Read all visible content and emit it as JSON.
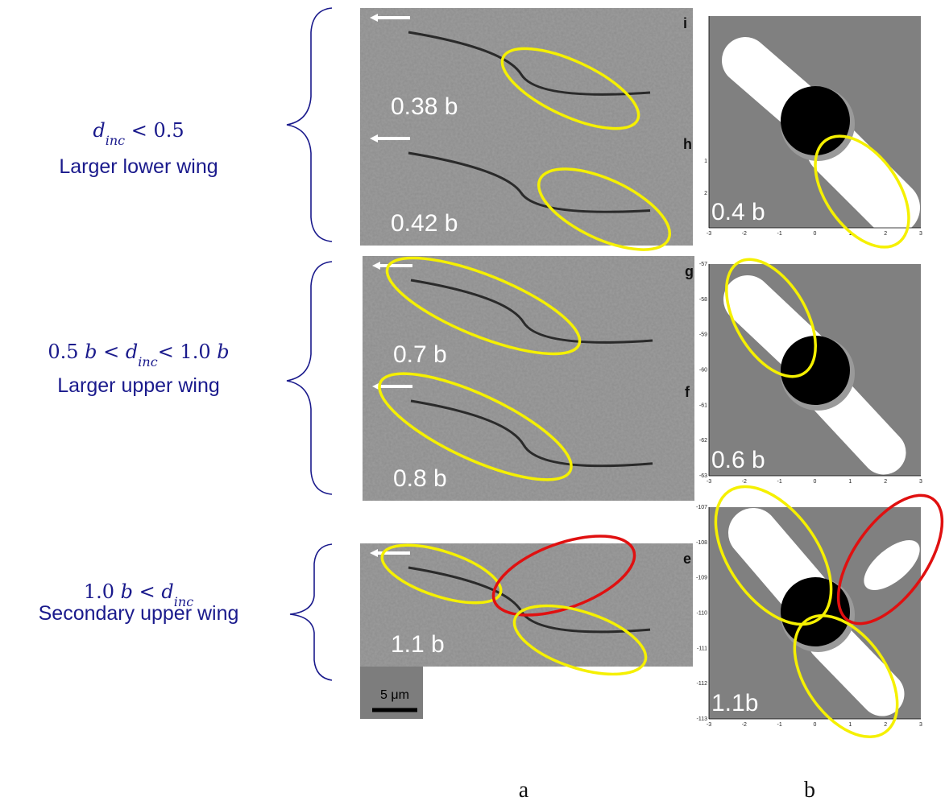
{
  "left_labels": [
    {
      "condition": [
        {
          "text": "d",
          "style": "italic"
        },
        {
          "text": "inc",
          "style": "sub"
        },
        {
          "text": " < 0.5"
        }
      ],
      "description": "Larger lower wing"
    },
    {
      "condition": [
        {
          "text": "0.5 "
        },
        {
          "text": "b",
          "style": "italic"
        },
        {
          "text": " < "
        },
        {
          "text": "d",
          "style": "italic"
        },
        {
          "text": "inc",
          "style": "sub"
        },
        {
          "text": "< 1.0 "
        },
        {
          "text": "b",
          "style": "italic"
        }
      ],
      "description": "Larger upper wing"
    },
    {
      "condition": [
        {
          "text": "1.0 "
        },
        {
          "text": "b",
          "style": "italic"
        },
        {
          "text": " < "
        },
        {
          "text": "d",
          "style": "italic"
        },
        {
          "text": "inc",
          "style": "sub"
        }
      ],
      "description": "Secondary upper wing"
    }
  ],
  "sem_panels": [
    {
      "letter": "i",
      "label": "0.38 b"
    },
    {
      "letter": "h",
      "label": "0.42 b"
    },
    {
      "letter": "g",
      "label": "0.7 b"
    },
    {
      "letter": "f",
      "label": "0.8 b"
    },
    {
      "letter": "e",
      "label": "1.1 b"
    }
  ],
  "scale_bar": "5 μm",
  "sim_panels": [
    {
      "label": "0.4 b",
      "xticks": [
        "-3",
        "-2",
        "-1",
        "0",
        "1",
        "2",
        "3"
      ],
      "yticks": [
        "1",
        "2"
      ]
    },
    {
      "label": "0.6 b",
      "xticks": [
        "-3",
        "-2",
        "-1",
        "0",
        "1",
        "2",
        "3"
      ],
      "yticks": [
        "-57",
        "-58",
        "-59",
        "-60",
        "-61",
        "-62",
        "-63"
      ]
    },
    {
      "label": "1.1b",
      "xticks": [
        "-3",
        "-2",
        "-1",
        "0",
        "1",
        "2",
        "3"
      ],
      "yticks": [
        "-107",
        "-108",
        "-109",
        "-110",
        "-111",
        "-112",
        "-113"
      ]
    }
  ],
  "column_labels": [
    "a",
    "b"
  ]
}
